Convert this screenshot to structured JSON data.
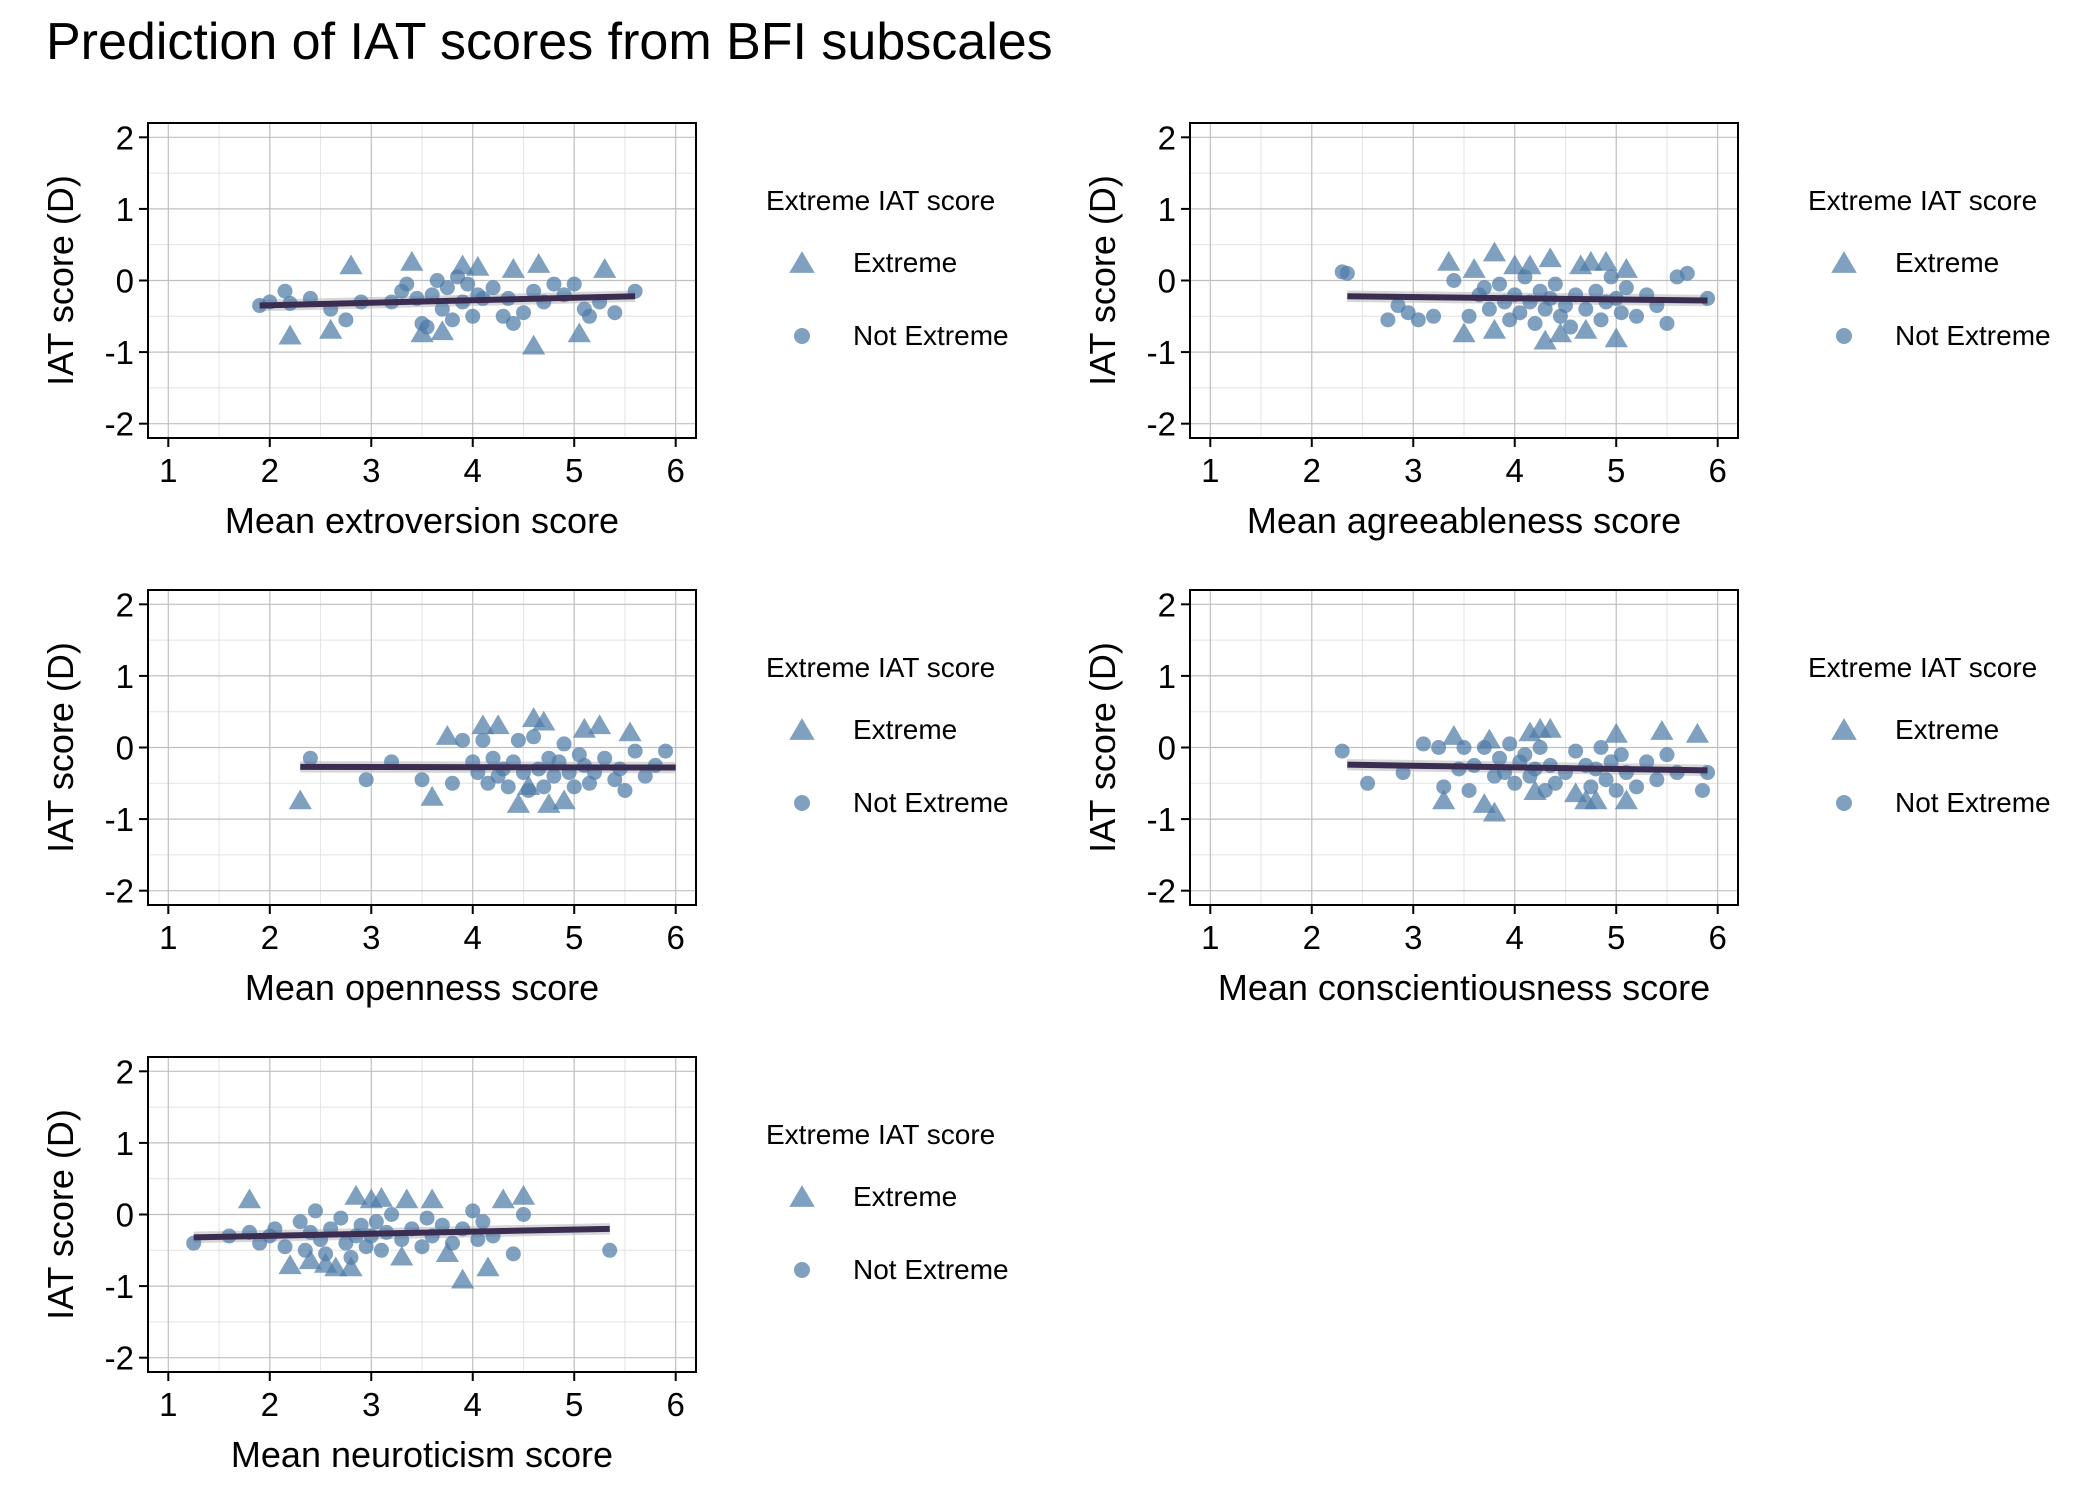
{
  "title": "Prediction of IAT scores from BFI subscales",
  "colors": {
    "point": "#4F7BA8",
    "fit_line": "#3B2D52",
    "ribbon": "#BDBDBD",
    "grid_major": "#BFBFBF",
    "grid_minor": "#E3E3E3"
  },
  "legend": {
    "title": "Extreme IAT score",
    "items": [
      {
        "label": "Extreme",
        "shape": "triangle"
      },
      {
        "label": "Not Extreme",
        "shape": "circle"
      }
    ]
  },
  "chart_data": [
    {
      "type": "scatter",
      "xlabel": "Mean extroversion score",
      "ylabel": "IAT score (D)",
      "xlim": [
        0.8,
        6.2
      ],
      "ylim": [
        -2.2,
        2.2
      ],
      "xticks": [
        "1",
        "2",
        "3",
        "4",
        "5",
        "6"
      ],
      "yticks": [
        "-2",
        "-1",
        "0",
        "1",
        "2"
      ],
      "grid": true,
      "legend_position": "right",
      "fit": {
        "x": [
          1.9,
          5.6
        ],
        "y": [
          -0.35,
          -0.22
        ],
        "se": 0.08
      },
      "series": [
        {
          "name": "Extreme",
          "x": [
            2.2,
            2.6,
            2.8,
            3.4,
            3.5,
            3.7,
            3.9,
            4.05,
            4.4,
            4.6,
            4.65,
            5.05,
            5.3
          ],
          "y": [
            -0.78,
            -0.7,
            0.2,
            0.25,
            -0.75,
            -0.72,
            0.2,
            0.18,
            0.15,
            -0.92,
            0.22,
            -0.75,
            0.15
          ]
        },
        {
          "name": "Not Extreme",
          "x": [
            1.9,
            2.0,
            2.15,
            2.2,
            2.4,
            2.6,
            2.75,
            2.9,
            3.2,
            3.3,
            3.35,
            3.45,
            3.5,
            3.55,
            3.6,
            3.65,
            3.7,
            3.75,
            3.8,
            3.85,
            3.9,
            3.95,
            4.0,
            4.05,
            4.1,
            4.2,
            4.3,
            4.35,
            4.4,
            4.5,
            4.6,
            4.7,
            4.8,
            4.9,
            5.0,
            5.1,
            5.15,
            5.25,
            5.4,
            5.6
          ],
          "y": [
            -0.35,
            -0.3,
            -0.15,
            -0.32,
            -0.25,
            -0.4,
            -0.55,
            -0.3,
            -0.3,
            -0.15,
            -0.05,
            -0.25,
            -0.6,
            -0.65,
            -0.2,
            0.0,
            -0.4,
            -0.1,
            -0.55,
            0.05,
            -0.3,
            -0.05,
            -0.5,
            -0.2,
            -0.25,
            -0.1,
            -0.5,
            -0.25,
            -0.6,
            -0.45,
            -0.15,
            -0.3,
            -0.05,
            -0.2,
            -0.05,
            -0.4,
            -0.5,
            -0.3,
            -0.45,
            -0.15
          ]
        }
      ]
    },
    {
      "type": "scatter",
      "xlabel": "Mean agreeableness score",
      "ylabel": "IAT score (D)",
      "xlim": [
        0.8,
        6.2
      ],
      "ylim": [
        -2.2,
        2.2
      ],
      "xticks": [
        "1",
        "2",
        "3",
        "4",
        "5",
        "6"
      ],
      "yticks": [
        "-2",
        "-1",
        "0",
        "1",
        "2"
      ],
      "grid": true,
      "legend_position": "right",
      "fit": {
        "x": [
          2.35,
          5.9
        ],
        "y": [
          -0.22,
          -0.28
        ],
        "se": 0.08
      },
      "series": [
        {
          "name": "Extreme",
          "x": [
            3.35,
            3.5,
            3.6,
            3.8,
            3.8,
            4.0,
            4.15,
            4.3,
            4.35,
            4.45,
            4.65,
            4.7,
            4.75,
            4.9,
            5.0,
            5.1
          ],
          "y": [
            0.25,
            -0.75,
            0.15,
            0.38,
            -0.7,
            0.2,
            0.2,
            -0.85,
            0.3,
            -0.75,
            0.2,
            -0.7,
            0.25,
            0.25,
            -0.82,
            0.15
          ]
        },
        {
          "name": "Not Extreme",
          "x": [
            2.3,
            2.35,
            2.75,
            2.85,
            2.95,
            3.05,
            3.2,
            3.4,
            3.55,
            3.65,
            3.7,
            3.75,
            3.85,
            3.9,
            3.95,
            4.0,
            4.05,
            4.1,
            4.15,
            4.2,
            4.25,
            4.3,
            4.35,
            4.4,
            4.45,
            4.5,
            4.55,
            4.6,
            4.7,
            4.8,
            4.85,
            4.9,
            4.95,
            5.0,
            5.05,
            5.1,
            5.2,
            5.3,
            5.4,
            5.5,
            5.6,
            5.7,
            5.9
          ],
          "y": [
            0.12,
            0.1,
            -0.55,
            -0.35,
            -0.45,
            -0.55,
            -0.5,
            0.0,
            -0.5,
            -0.2,
            -0.1,
            -0.4,
            -0.05,
            -0.3,
            -0.55,
            -0.2,
            -0.45,
            0.05,
            -0.3,
            -0.6,
            -0.15,
            -0.4,
            -0.25,
            -0.05,
            -0.5,
            -0.35,
            -0.65,
            -0.2,
            -0.4,
            -0.15,
            -0.55,
            -0.3,
            0.05,
            -0.25,
            -0.45,
            -0.1,
            -0.5,
            -0.2,
            -0.35,
            -0.6,
            0.05,
            0.1,
            -0.25
          ]
        }
      ]
    },
    {
      "type": "scatter",
      "xlabel": "Mean openness score",
      "ylabel": "IAT score (D)",
      "xlim": [
        0.8,
        6.2
      ],
      "ylim": [
        -2.2,
        2.2
      ],
      "xticks": [
        "1",
        "2",
        "3",
        "4",
        "5",
        "6"
      ],
      "yticks": [
        "-2",
        "-1",
        "0",
        "1",
        "2"
      ],
      "grid": true,
      "legend_position": "right",
      "fit": {
        "x": [
          2.3,
          6.0
        ],
        "y": [
          -0.27,
          -0.28
        ],
        "se": 0.08
      },
      "series": [
        {
          "name": "Extreme",
          "x": [
            2.3,
            3.6,
            3.75,
            4.1,
            4.25,
            4.45,
            4.55,
            4.6,
            4.7,
            4.75,
            4.9,
            5.1,
            5.25,
            5.55
          ],
          "y": [
            -0.75,
            -0.7,
            0.15,
            0.3,
            0.3,
            -0.8,
            -0.55,
            0.4,
            0.35,
            -0.8,
            -0.75,
            0.25,
            0.3,
            0.2
          ]
        },
        {
          "name": "Not Extreme",
          "x": [
            2.4,
            2.95,
            3.2,
            3.5,
            3.8,
            3.9,
            4.0,
            4.05,
            4.1,
            4.15,
            4.2,
            4.25,
            4.3,
            4.35,
            4.4,
            4.45,
            4.5,
            4.55,
            4.6,
            4.65,
            4.7,
            4.75,
            4.8,
            4.85,
            4.9,
            4.95,
            5.0,
            5.05,
            5.1,
            5.15,
            5.2,
            5.3,
            5.4,
            5.45,
            5.5,
            5.6,
            5.7,
            5.8,
            5.9
          ],
          "y": [
            -0.15,
            -0.45,
            -0.2,
            -0.45,
            -0.5,
            0.1,
            -0.2,
            -0.35,
            0.1,
            -0.5,
            -0.15,
            -0.4,
            -0.3,
            -0.55,
            -0.2,
            0.1,
            -0.35,
            -0.6,
            0.15,
            -0.3,
            -0.55,
            -0.15,
            -0.4,
            -0.2,
            0.05,
            -0.35,
            -0.55,
            -0.1,
            -0.25,
            -0.5,
            -0.35,
            -0.15,
            -0.45,
            -0.3,
            -0.6,
            -0.05,
            -0.4,
            -0.25,
            -0.05
          ]
        }
      ]
    },
    {
      "type": "scatter",
      "xlabel": "Mean conscientiousness score",
      "ylabel": "IAT score (D)",
      "xlim": [
        0.8,
        6.2
      ],
      "ylim": [
        -2.2,
        2.2
      ],
      "xticks": [
        "1",
        "2",
        "3",
        "4",
        "5",
        "6"
      ],
      "yticks": [
        "-2",
        "-1",
        "0",
        "1",
        "2"
      ],
      "grid": true,
      "legend_position": "right",
      "fit": {
        "x": [
          2.35,
          5.9
        ],
        "y": [
          -0.24,
          -0.32
        ],
        "se": 0.08
      },
      "series": [
        {
          "name": "Extreme",
          "x": [
            3.3,
            3.4,
            3.7,
            3.75,
            3.8,
            4.15,
            4.2,
            4.25,
            4.35,
            4.6,
            4.7,
            4.8,
            5.0,
            5.1,
            5.45,
            5.8
          ],
          "y": [
            -0.75,
            0.15,
            -0.8,
            0.1,
            -0.92,
            0.2,
            -0.62,
            0.25,
            0.25,
            -0.65,
            -0.75,
            -0.75,
            0.18,
            -0.75,
            0.22,
            0.18
          ]
        },
        {
          "name": "Not Extreme",
          "x": [
            2.3,
            2.55,
            2.9,
            3.1,
            3.25,
            3.3,
            3.45,
            3.5,
            3.55,
            3.6,
            3.7,
            3.8,
            3.85,
            3.9,
            3.95,
            4.0,
            4.05,
            4.1,
            4.15,
            4.2,
            4.25,
            4.3,
            4.35,
            4.4,
            4.5,
            4.6,
            4.7,
            4.75,
            4.8,
            4.85,
            4.9,
            4.95,
            5.0,
            5.05,
            5.1,
            5.2,
            5.3,
            5.4,
            5.5,
            5.6,
            5.85,
            5.9
          ],
          "y": [
            -0.05,
            -0.5,
            -0.35,
            0.05,
            0.0,
            -0.55,
            -0.3,
            0.0,
            -0.6,
            -0.25,
            0.0,
            -0.4,
            -0.15,
            -0.35,
            0.05,
            -0.5,
            -0.2,
            -0.1,
            -0.4,
            -0.3,
            0.0,
            -0.6,
            -0.25,
            -0.5,
            -0.35,
            -0.05,
            -0.25,
            -0.55,
            -0.3,
            0.0,
            -0.45,
            -0.2,
            -0.6,
            -0.1,
            -0.35,
            -0.55,
            -0.2,
            -0.45,
            -0.1,
            -0.35,
            -0.6,
            -0.35
          ]
        }
      ]
    },
    {
      "type": "scatter",
      "xlabel": "Mean neuroticism score",
      "ylabel": "IAT score (D)",
      "xlim": [
        0.8,
        6.2
      ],
      "ylim": [
        -2.2,
        2.2
      ],
      "xticks": [
        "1",
        "2",
        "3",
        "4",
        "5",
        "6"
      ],
      "yticks": [
        "-2",
        "-1",
        "0",
        "1",
        "2"
      ],
      "grid": true,
      "legend_position": "right",
      "fit": {
        "x": [
          1.25,
          5.35
        ],
        "y": [
          -0.32,
          -0.2
        ],
        "se": 0.08
      },
      "series": [
        {
          "name": "Extreme",
          "x": [
            1.8,
            2.2,
            2.4,
            2.55,
            2.65,
            2.8,
            2.85,
            3.0,
            3.1,
            3.3,
            3.35,
            3.6,
            3.75,
            3.9,
            4.15,
            4.3,
            4.5
          ],
          "y": [
            0.2,
            -0.72,
            -0.65,
            -0.7,
            -0.75,
            -0.75,
            0.25,
            0.2,
            0.22,
            -0.6,
            0.2,
            0.2,
            -0.55,
            -0.92,
            -0.75,
            0.2,
            0.25
          ]
        },
        {
          "name": "Not Extreme",
          "x": [
            1.25,
            1.6,
            1.8,
            1.9,
            2.0,
            2.05,
            2.15,
            2.3,
            2.35,
            2.4,
            2.45,
            2.5,
            2.55,
            2.6,
            2.7,
            2.75,
            2.8,
            2.85,
            2.9,
            2.95,
            3.0,
            3.05,
            3.1,
            3.15,
            3.2,
            3.3,
            3.4,
            3.5,
            3.55,
            3.6,
            3.7,
            3.8,
            3.9,
            4.0,
            4.05,
            4.1,
            4.2,
            4.4,
            4.5,
            5.35
          ],
          "y": [
            -0.4,
            -0.3,
            -0.25,
            -0.4,
            -0.3,
            -0.2,
            -0.45,
            -0.1,
            -0.5,
            -0.25,
            0.05,
            -0.35,
            -0.55,
            -0.2,
            -0.05,
            -0.4,
            -0.6,
            -0.3,
            -0.15,
            -0.45,
            -0.3,
            -0.1,
            -0.5,
            -0.25,
            0.0,
            -0.35,
            -0.2,
            -0.45,
            -0.05,
            -0.3,
            -0.15,
            -0.4,
            -0.2,
            0.05,
            -0.35,
            -0.1,
            -0.3,
            -0.55,
            0.0,
            -0.5
          ]
        }
      ]
    }
  ]
}
